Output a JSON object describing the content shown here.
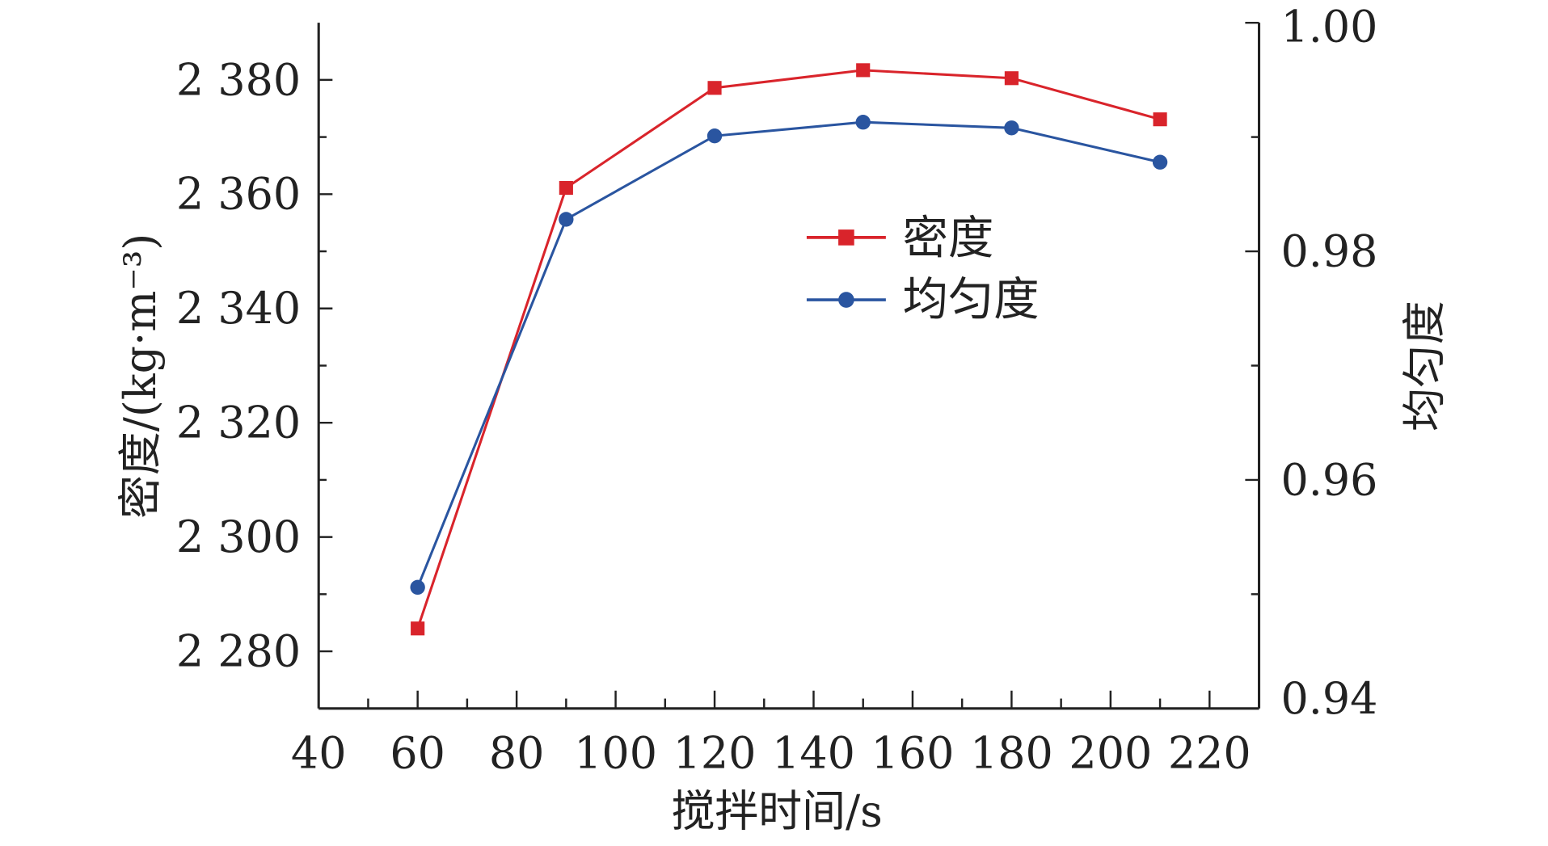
{
  "chart_data": {
    "type": "line",
    "title": "",
    "xlabel": "搅拌时间/s",
    "ylabel": "密度/(kg·m⁻³)",
    "y2label": "均匀度",
    "xlim": [
      40,
      230
    ],
    "ylim": [
      2270,
      2390
    ],
    "y2lim": [
      0.94,
      1.0
    ],
    "x_ticks": [
      "40",
      "60",
      "80",
      "100",
      "120",
      "140",
      "160",
      "180",
      "200",
      "220"
    ],
    "y_ticks": [
      "2 280",
      "2 300",
      "2 320",
      "2 340",
      "2 360",
      "2 380"
    ],
    "y2_ticks": [
      "0.94",
      "0.96",
      "0.98",
      "1.00"
    ],
    "x": [
      60,
      90,
      120,
      150,
      180,
      210
    ],
    "series": [
      {
        "name": "密度",
        "axis": "left",
        "marker": "square",
        "color": "#d9242b",
        "values": [
          2284.0,
          2361.1,
          2378.6,
          2381.7,
          2380.3,
          2373.1
        ]
      },
      {
        "name": "均匀度",
        "axis": "right",
        "marker": "circle",
        "color": "#2a55a0",
        "values": [
          0.9506,
          0.9828,
          0.9901,
          0.9913,
          0.9908,
          0.9878
        ]
      }
    ],
    "legend": "center-right",
    "grid": false
  }
}
